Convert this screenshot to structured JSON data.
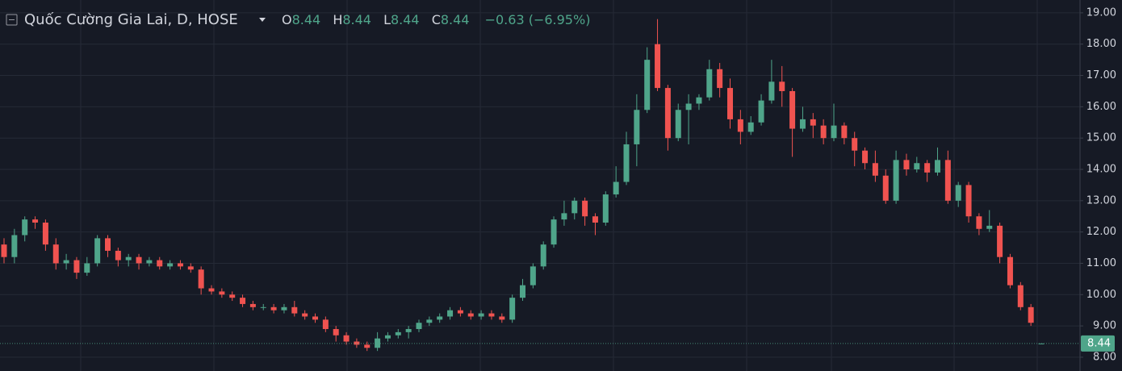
{
  "chart_data": {
    "type": "candlestick",
    "title": "Quốc Cường Gia Lai, D, HOSE",
    "legend": {
      "o_label": "O",
      "o": 8.44,
      "h_label": "H",
      "h": 8.44,
      "l_label": "L",
      "l": 8.44,
      "c_label": "C",
      "c": 8.44,
      "change": "−0.63 (−6.95%)"
    },
    "up_color": "#4fa58a",
    "down_color": "#f05350",
    "grid": true,
    "ylim": [
      7.56,
      19.41
    ],
    "yticks": [
      {
        "value": 8,
        "label": "8.00"
      },
      {
        "value": 9,
        "label": "9.00"
      },
      {
        "value": 10,
        "label": "10.00"
      },
      {
        "value": 11,
        "label": "11.00"
      },
      {
        "value": 12,
        "label": "12.00"
      },
      {
        "value": 13,
        "label": "13.00"
      },
      {
        "value": 14,
        "label": "14.00"
      },
      {
        "value": 15,
        "label": "15.00"
      },
      {
        "value": 16,
        "label": "16.00"
      },
      {
        "value": 17,
        "label": "17.00"
      },
      {
        "value": 18,
        "label": "18.00"
      },
      {
        "value": 19,
        "label": "19.00"
      }
    ],
    "last_price": 8.44,
    "open": [
      11.6,
      11.2,
      11.9,
      12.4,
      12.3,
      11.6,
      11.0,
      11.1,
      10.7,
      11.0,
      11.8,
      11.4,
      11.1,
      11.2,
      11.0,
      11.1,
      10.9,
      11.0,
      10.9,
      10.8,
      10.2,
      10.1,
      10.0,
      9.9,
      9.7,
      9.6,
      9.6,
      9.5,
      9.6,
      9.4,
      9.3,
      9.2,
      8.9,
      8.7,
      8.5,
      8.4,
      8.3,
      8.6,
      8.7,
      8.8,
      8.9,
      9.1,
      9.2,
      9.3,
      9.5,
      9.4,
      9.3,
      9.4,
      9.3,
      9.2,
      9.9,
      10.3,
      10.9,
      11.6,
      12.4,
      12.6,
      13.0,
      12.5,
      12.3,
      13.2,
      13.6,
      14.8,
      15.9,
      18.0,
      16.6,
      15.0,
      15.9,
      16.1,
      16.3,
      17.2,
      16.6,
      15.6,
      15.2,
      15.5,
      16.2,
      16.8,
      16.5,
      15.3,
      15.6,
      15.4,
      15.0,
      15.4,
      15.0,
      14.6,
      14.2,
      13.8,
      13.0,
      14.3,
      14.0,
      14.2,
      13.9,
      14.3,
      13.0,
      13.5,
      12.5,
      12.1,
      12.2,
      11.2,
      10.3,
      9.6,
      8.44
    ],
    "high": [
      11.8,
      12.1,
      12.5,
      12.5,
      12.4,
      11.8,
      11.3,
      11.2,
      11.2,
      11.9,
      11.9,
      11.5,
      11.3,
      11.3,
      11.2,
      11.2,
      11.1,
      11.1,
      11.0,
      10.9,
      10.3,
      10.2,
      10.1,
      10.0,
      9.8,
      9.7,
      9.7,
      9.7,
      9.8,
      9.5,
      9.4,
      9.3,
      9.0,
      8.8,
      8.6,
      8.5,
      8.8,
      8.8,
      8.9,
      9.0,
      9.2,
      9.3,
      9.4,
      9.6,
      9.6,
      9.5,
      9.5,
      9.5,
      9.4,
      10.0,
      10.5,
      11.0,
      11.7,
      12.5,
      13.0,
      13.1,
      13.1,
      12.6,
      13.3,
      14.1,
      15.2,
      16.4,
      17.9,
      18.8,
      16.7,
      16.1,
      16.4,
      16.4,
      17.5,
      17.4,
      16.9,
      15.9,
      15.7,
      16.4,
      17.5,
      17.3,
      16.6,
      16.0,
      15.8,
      15.6,
      16.1,
      15.5,
      15.2,
      14.7,
      14.6,
      14.0,
      14.6,
      14.5,
      14.4,
      14.3,
      14.7,
      14.6,
      13.6,
      13.6,
      12.6,
      12.7,
      12.3,
      11.3,
      10.4,
      9.7,
      8.44
    ],
    "low": [
      11.0,
      11.0,
      11.7,
      12.1,
      11.4,
      10.8,
      10.8,
      10.5,
      10.6,
      10.9,
      11.2,
      10.9,
      10.9,
      10.8,
      10.9,
      10.8,
      10.8,
      10.8,
      10.7,
      10.0,
      10.0,
      9.9,
      9.8,
      9.6,
      9.5,
      9.5,
      9.4,
      9.4,
      9.3,
      9.2,
      9.1,
      8.8,
      8.5,
      8.4,
      8.3,
      8.2,
      8.2,
      8.5,
      8.6,
      8.6,
      8.8,
      9.0,
      9.1,
      9.2,
      9.3,
      9.2,
      9.2,
      9.2,
      9.1,
      9.1,
      9.8,
      10.2,
      10.8,
      11.5,
      12.2,
      12.4,
      12.2,
      11.9,
      12.2,
      13.1,
      13.5,
      14.1,
      15.8,
      16.5,
      14.6,
      14.9,
      14.8,
      15.9,
      16.2,
      16.3,
      15.3,
      14.8,
      15.1,
      15.4,
      16.1,
      16.0,
      14.4,
      15.2,
      15.0,
      14.8,
      14.9,
      14.8,
      14.1,
      14.0,
      13.6,
      12.9,
      12.9,
      13.8,
      13.9,
      13.6,
      13.8,
      12.9,
      12.8,
      12.3,
      11.9,
      12.0,
      11.0,
      10.2,
      9.5,
      9.0,
      8.44
    ],
    "close": [
      11.2,
      11.9,
      12.4,
      12.3,
      11.6,
      11.0,
      11.1,
      10.7,
      11.0,
      11.8,
      11.4,
      11.1,
      11.2,
      11.0,
      11.1,
      10.9,
      11.0,
      10.9,
      10.8,
      10.2,
      10.1,
      10.0,
      9.9,
      9.7,
      9.6,
      9.6,
      9.5,
      9.6,
      9.4,
      9.3,
      9.2,
      8.9,
      8.7,
      8.5,
      8.4,
      8.3,
      8.6,
      8.7,
      8.8,
      8.9,
      9.1,
      9.2,
      9.3,
      9.5,
      9.4,
      9.3,
      9.4,
      9.3,
      9.2,
      9.9,
      10.3,
      10.9,
      11.6,
      12.4,
      12.6,
      13.0,
      12.5,
      12.3,
      13.2,
      13.6,
      14.8,
      15.9,
      17.5,
      16.6,
      15.0,
      15.9,
      16.1,
      16.3,
      17.2,
      16.6,
      15.6,
      15.2,
      15.5,
      16.2,
      16.8,
      16.5,
      15.3,
      15.6,
      15.4,
      15.0,
      15.4,
      15.0,
      14.6,
      14.2,
      13.8,
      13.0,
      14.3,
      14.0,
      14.2,
      13.9,
      14.3,
      13.0,
      13.5,
      12.5,
      12.1,
      12.2,
      11.2,
      10.3,
      9.6,
      9.1,
      8.44
    ]
  }
}
